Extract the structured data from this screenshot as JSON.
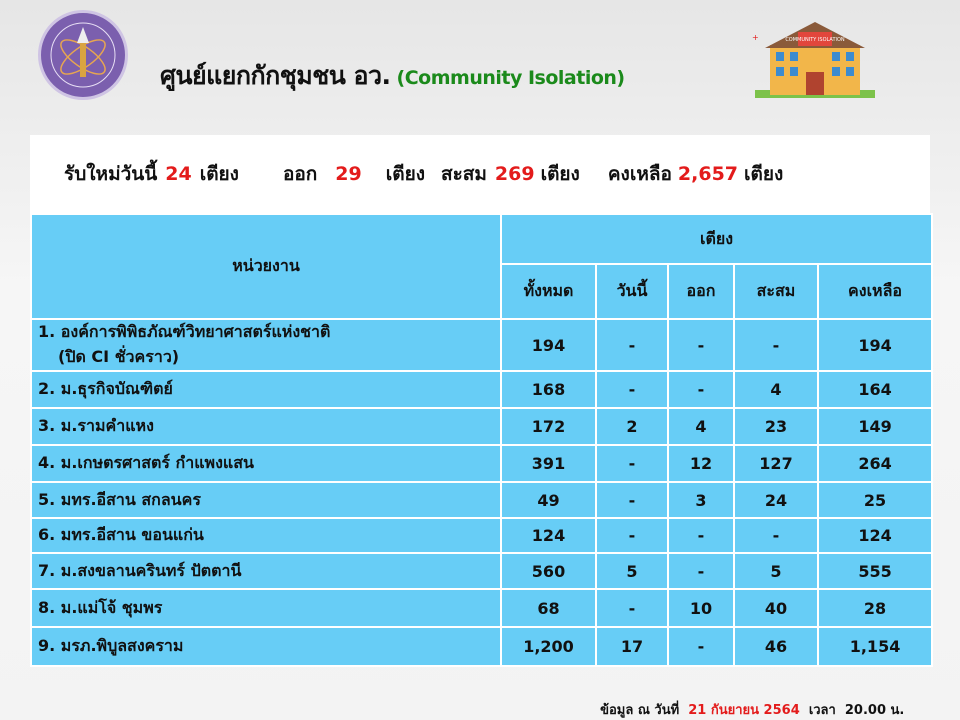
{
  "header": {
    "title_th": "ศูนย์แยกกักชุมชน อว.",
    "title_en": "(Community  Isolation)",
    "building_sign": "COMMUNITY ISOLATION",
    "colors": {
      "title_en": "#1b8a1b",
      "highlight": "#e31b1b",
      "table_bg": "#67cdf6",
      "logo": "#7b5fae"
    }
  },
  "summary": {
    "new_label": "รับใหม่วันนี้",
    "new_value": "24",
    "out_label": "ออก",
    "out_value": "29",
    "total_label": "สะสม",
    "total_value": "269",
    "remaining_label": "คงเหลือ",
    "remaining_value": "2,657",
    "unit": "เตียง"
  },
  "table": {
    "unit_header": "หน่วยงาน",
    "beds_header": "เตียง",
    "columns": [
      "ทั้งหมด",
      "วันนี้",
      "ออก",
      "สะสม",
      "คงเหลือ"
    ],
    "rows": [
      {
        "name": "1. องค์การพิพิธภัณฑ์วิทยาศาสตร์แห่งชาติ",
        "note": "(ปิด CI ชั่วคราว)",
        "values": [
          "194",
          "-",
          "-",
          "-",
          "194"
        ]
      },
      {
        "name": "2.  ม.ธุรกิจบัณฑิตย์",
        "values": [
          "168",
          "-",
          "-",
          "4",
          "164"
        ]
      },
      {
        "name": "3. ม.รามคำแหง",
        "values": [
          "172",
          "2",
          "4",
          "23",
          "149"
        ]
      },
      {
        "name": "4. ม.เกษตรศาสตร์ กำแพงแสน",
        "values": [
          "391",
          "-",
          "12",
          "127",
          "264"
        ]
      },
      {
        "name": "5. มทร.อีสาน สกลนคร",
        "values": [
          "49",
          "-",
          "3",
          "24",
          "25"
        ]
      },
      {
        "name": "6. มทร.อีสาน ขอนแก่น",
        "values": [
          "124",
          "-",
          "-",
          "-",
          "124"
        ]
      },
      {
        "name": "7. ม.สงขลานครินทร์ ปัตตานี",
        "values": [
          "560",
          "5",
          "-",
          "5",
          "555"
        ]
      },
      {
        "name": "8. ม.แม่โจ้  ชุมพร",
        "values": [
          "68",
          "-",
          "10",
          "40",
          "28"
        ]
      },
      {
        "name": "9. มรภ.พิบูลสงคราม",
        "values": [
          "1,200",
          "17",
          "-",
          "46",
          "1,154"
        ]
      }
    ]
  },
  "footer": {
    "label": "ข้อมูล ณ วันที่",
    "date": "21 กันยายน 2564",
    "time_label": "เวลา",
    "time": "20.00 น."
  }
}
